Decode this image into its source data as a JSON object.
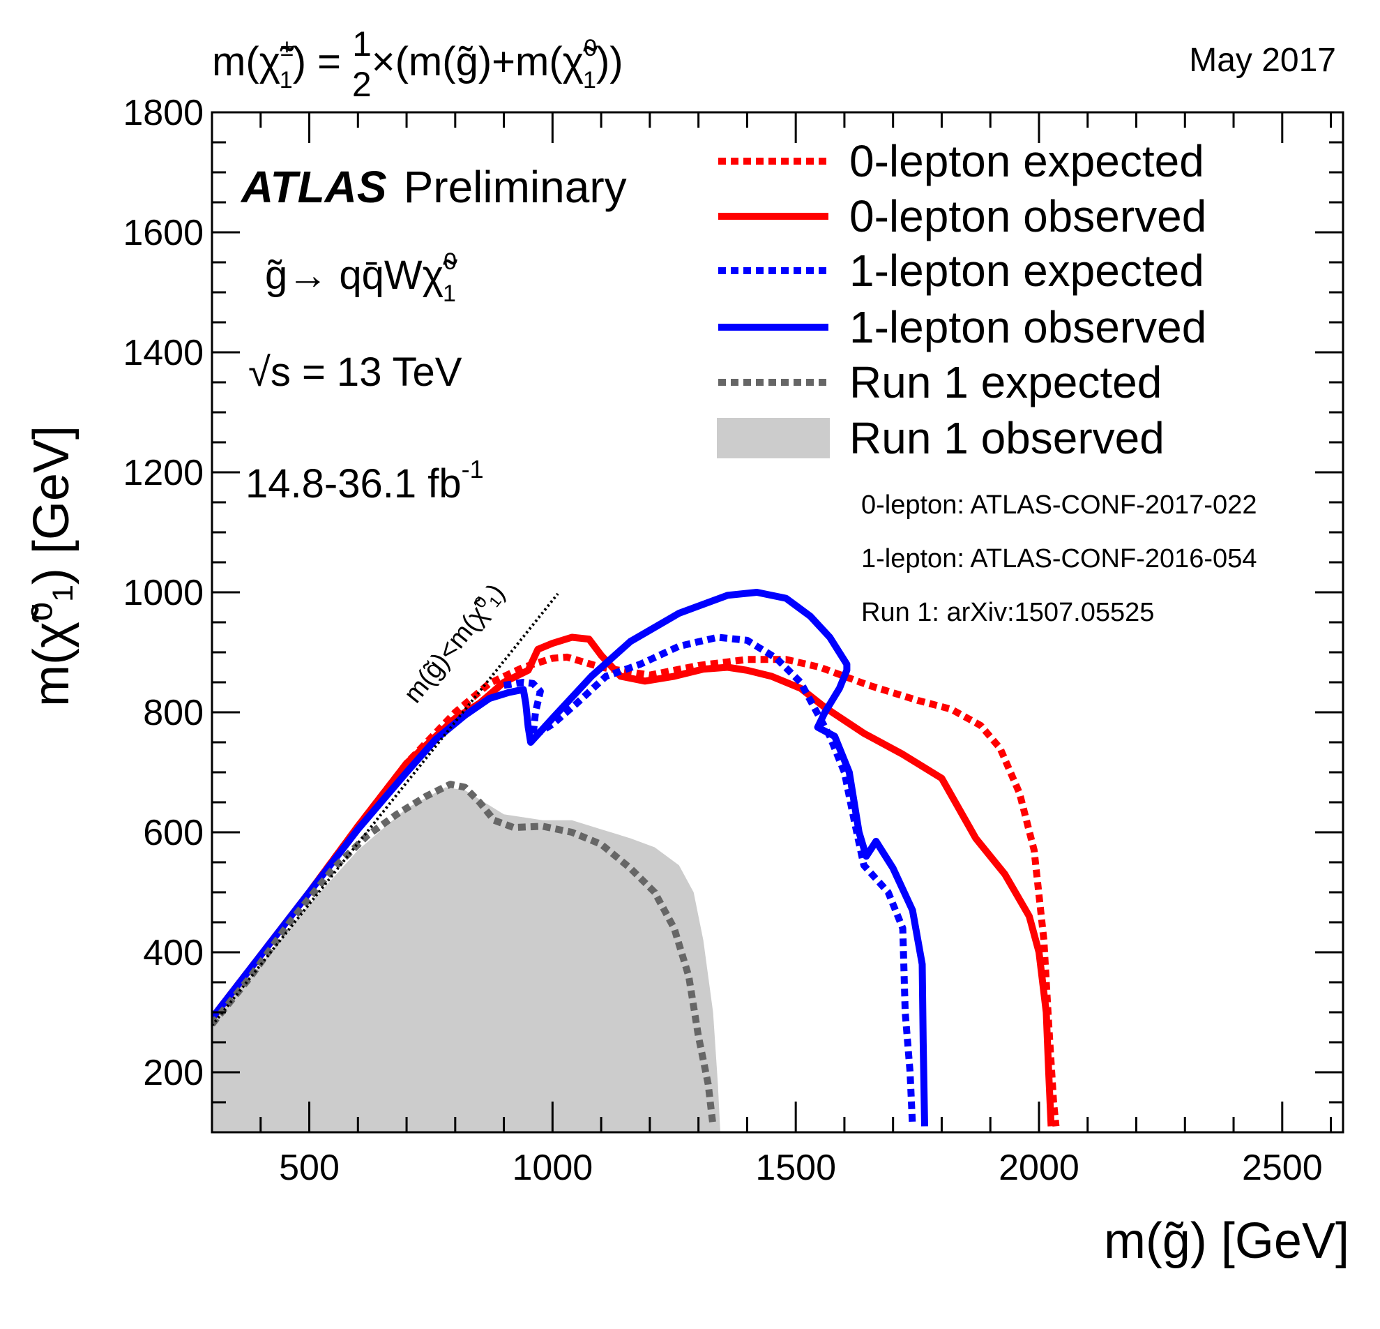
{
  "header": {
    "formula_parts": [
      "m(",
      "χ̃",
      "±",
      "1",
      ") = ",
      "1",
      "2",
      "×(m(",
      "g̃",
      ")+m(",
      "χ̃",
      "0",
      "1",
      "))"
    ],
    "date": "May 2017"
  },
  "annotations": {
    "experiment": "ATLAS",
    "status": "Preliminary",
    "process_parts": [
      "g̃",
      "→ qq̄W",
      "χ̃",
      "0",
      "1"
    ],
    "energy": "√s = 13 TeV",
    "luminosity_main": "14.8-36.1 fb",
    "luminosity_sup": "-1",
    "diagonal_label": "m(g̃)<m(χ̃⁰₁)"
  },
  "references": [
    "0-lepton: ATLAS-CONF-2017-022",
    "1-lepton: ATLAS-CONF-2016-054",
    "Run 1: arXiv:1507.05525"
  ],
  "colors": {
    "red": "#ff0000",
    "blue": "#0000ff",
    "run1_line": "#666666",
    "run1_fill": "#cccccc",
    "axis": "#000000"
  },
  "chart_data": {
    "type": "line",
    "xlabel": "m(g̃) [GeV]",
    "ylabel": "m(χ̃⁰₁) [GeV]",
    "xlim": [
      300,
      2625
    ],
    "ylim": [
      100,
      1800
    ],
    "x_ticks": [
      500,
      1000,
      1500,
      2000,
      2500
    ],
    "y_ticks": [
      200,
      400,
      600,
      800,
      1000,
      1200,
      1400,
      1600,
      1800
    ],
    "grid": false,
    "legend_position": "top-right",
    "series": [
      {
        "name": "0-lepton expected",
        "style": "dotted",
        "color": "#ff0000",
        "points": [
          [
            300,
            290
          ],
          [
            400,
            395
          ],
          [
            500,
            500
          ],
          [
            600,
            610
          ],
          [
            700,
            715
          ],
          [
            800,
            800
          ],
          [
            870,
            848
          ],
          [
            940,
            875
          ],
          [
            1000,
            890
          ],
          [
            1030,
            892
          ],
          [
            1100,
            875
          ],
          [
            1200,
            862
          ],
          [
            1300,
            878
          ],
          [
            1400,
            888
          ],
          [
            1480,
            888
          ],
          [
            1550,
            875
          ],
          [
            1650,
            845
          ],
          [
            1750,
            820
          ],
          [
            1820,
            805
          ],
          [
            1880,
            778
          ],
          [
            1920,
            740
          ],
          [
            1960,
            665
          ],
          [
            1990,
            570
          ],
          [
            2010,
            420
          ],
          [
            2020,
            280
          ],
          [
            2030,
            150
          ],
          [
            2035,
            110
          ]
        ]
      },
      {
        "name": "0-lepton observed",
        "style": "solid",
        "color": "#ff0000",
        "points": [
          [
            300,
            290
          ],
          [
            400,
            395
          ],
          [
            500,
            500
          ],
          [
            600,
            610
          ],
          [
            700,
            715
          ],
          [
            800,
            790
          ],
          [
            850,
            815
          ],
          [
            900,
            850
          ],
          [
            950,
            870
          ],
          [
            970,
            905
          ],
          [
            1000,
            915
          ],
          [
            1040,
            925
          ],
          [
            1075,
            922
          ],
          [
            1100,
            895
          ],
          [
            1140,
            860
          ],
          [
            1190,
            852
          ],
          [
            1250,
            860
          ],
          [
            1310,
            872
          ],
          [
            1360,
            875
          ],
          [
            1400,
            870
          ],
          [
            1450,
            860
          ],
          [
            1510,
            840
          ],
          [
            1560,
            808
          ],
          [
            1640,
            765
          ],
          [
            1720,
            730
          ],
          [
            1800,
            690
          ],
          [
            1870,
            590
          ],
          [
            1930,
            530
          ],
          [
            1980,
            460
          ],
          [
            2000,
            400
          ],
          [
            2015,
            300
          ],
          [
            2020,
            200
          ],
          [
            2025,
            110
          ]
        ]
      },
      {
        "name": "1-lepton expected",
        "style": "dotted",
        "color": "#0000ff",
        "points": [
          [
            900,
            845
          ],
          [
            940,
            850
          ],
          [
            960,
            848
          ],
          [
            975,
            835
          ],
          [
            965,
            800
          ],
          [
            960,
            760
          ],
          [
            1000,
            780
          ],
          [
            1050,
            815
          ],
          [
            1110,
            860
          ],
          [
            1180,
            880
          ],
          [
            1260,
            910
          ],
          [
            1340,
            925
          ],
          [
            1400,
            920
          ],
          [
            1460,
            890
          ],
          [
            1510,
            850
          ],
          [
            1550,
            790
          ],
          [
            1570,
            760
          ],
          [
            1600,
            700
          ],
          [
            1620,
            620
          ],
          [
            1640,
            545
          ],
          [
            1690,
            500
          ],
          [
            1720,
            440
          ],
          [
            1725,
            300
          ],
          [
            1735,
            200
          ],
          [
            1740,
            110
          ]
        ]
      },
      {
        "name": "1-lepton observed",
        "style": "solid",
        "color": "#0000ff",
        "points": [
          [
            300,
            290
          ],
          [
            400,
            395
          ],
          [
            500,
            500
          ],
          [
            600,
            605
          ],
          [
            700,
            700
          ],
          [
            760,
            755
          ],
          [
            820,
            795
          ],
          [
            870,
            823
          ],
          [
            910,
            833
          ],
          [
            940,
            838
          ],
          [
            945,
            815
          ],
          [
            950,
            775
          ],
          [
            955,
            750
          ],
          [
            1000,
            790
          ],
          [
            1080,
            860
          ],
          [
            1160,
            918
          ],
          [
            1260,
            965
          ],
          [
            1360,
            995
          ],
          [
            1420,
            1000
          ],
          [
            1480,
            990
          ],
          [
            1530,
            960
          ],
          [
            1570,
            925
          ],
          [
            1605,
            880
          ],
          [
            1605,
            870
          ],
          [
            1590,
            840
          ],
          [
            1560,
            800
          ],
          [
            1545,
            775
          ],
          [
            1580,
            760
          ],
          [
            1610,
            700
          ],
          [
            1630,
            600
          ],
          [
            1645,
            560
          ],
          [
            1665,
            585
          ],
          [
            1700,
            540
          ],
          [
            1740,
            470
          ],
          [
            1760,
            380
          ],
          [
            1762,
            250
          ],
          [
            1765,
            110
          ]
        ]
      },
      {
        "name": "Run 1 expected",
        "style": "dotted",
        "color": "#666666",
        "points": [
          [
            300,
            280
          ],
          [
            380,
            360
          ],
          [
            460,
            450
          ],
          [
            550,
            540
          ],
          [
            620,
            595
          ],
          [
            680,
            630
          ],
          [
            740,
            660
          ],
          [
            790,
            680
          ],
          [
            820,
            675
          ],
          [
            850,
            650
          ],
          [
            880,
            620
          ],
          [
            920,
            608
          ],
          [
            980,
            610
          ],
          [
            1040,
            600
          ],
          [
            1100,
            580
          ],
          [
            1160,
            540
          ],
          [
            1210,
            500
          ],
          [
            1250,
            440
          ],
          [
            1280,
            360
          ],
          [
            1300,
            260
          ],
          [
            1320,
            180
          ],
          [
            1330,
            110
          ]
        ]
      },
      {
        "name": "Run 1 observed",
        "style": "fill",
        "color": "#cccccc",
        "points": [
          [
            300,
            100
          ],
          [
            300,
            290
          ],
          [
            400,
            380
          ],
          [
            500,
            480
          ],
          [
            600,
            570
          ],
          [
            700,
            640
          ],
          [
            780,
            675
          ],
          [
            820,
            670
          ],
          [
            860,
            650
          ],
          [
            900,
            630
          ],
          [
            980,
            620
          ],
          [
            1040,
            620
          ],
          [
            1100,
            605
          ],
          [
            1160,
            590
          ],
          [
            1210,
            575
          ],
          [
            1260,
            545
          ],
          [
            1290,
            500
          ],
          [
            1310,
            420
          ],
          [
            1330,
            300
          ],
          [
            1340,
            180
          ],
          [
            1345,
            100
          ]
        ]
      }
    ]
  }
}
